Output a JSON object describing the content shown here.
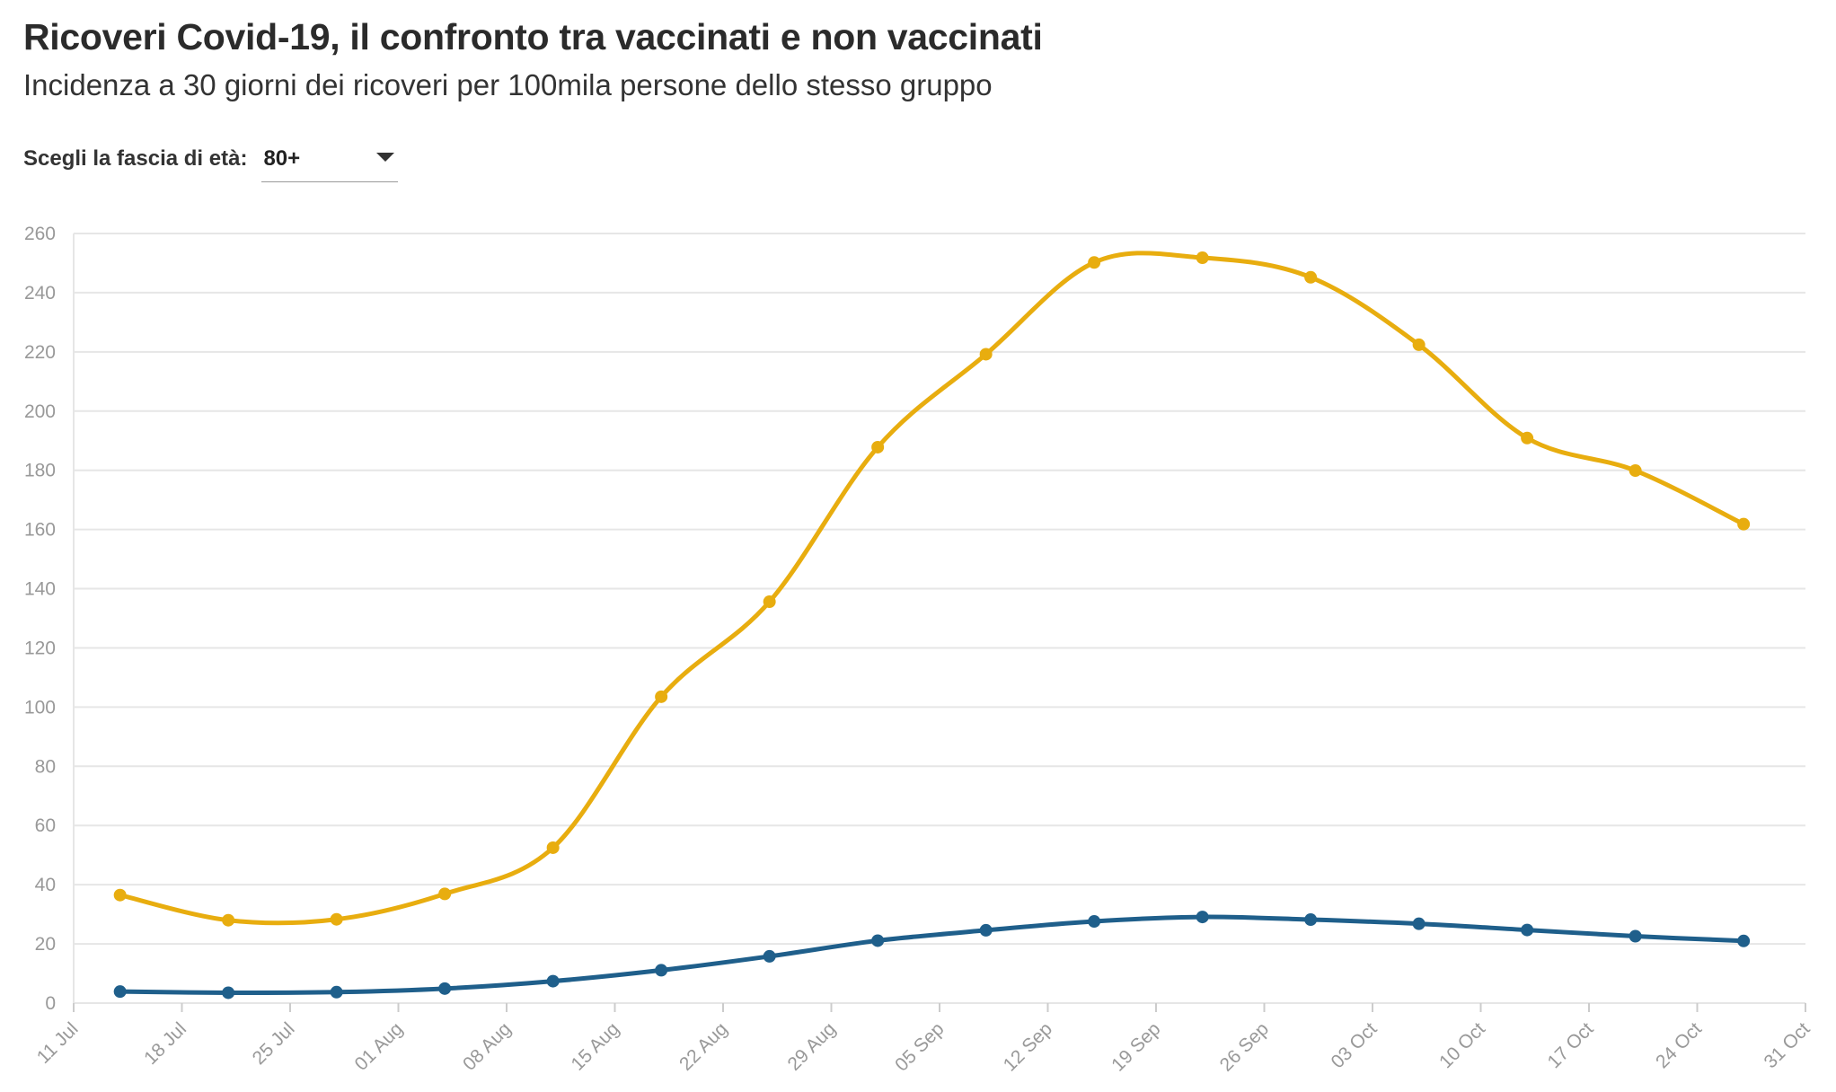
{
  "header": {
    "title": "Ricoveri Covid-19, il confronto tra vaccinati e non vaccinati",
    "subtitle": "Incidenza a 30 giorni dei ricoveri per 100mila persone dello stesso gruppo"
  },
  "control": {
    "label": "Scegli la fascia di età:",
    "selected": "80+",
    "icon": "chevron-down-icon"
  },
  "colors": {
    "non_vaccinati": "#e8ad0f",
    "vaccinati": "#1f5f8b",
    "grid": "#e6e6e6",
    "tick": "#999999"
  },
  "chart_data": {
    "type": "line",
    "title": "",
    "xlabel": "",
    "ylabel": "",
    "ylim": [
      0,
      260
    ],
    "yticks": [
      0,
      20,
      40,
      60,
      80,
      100,
      120,
      140,
      160,
      180,
      200,
      220,
      240,
      260
    ],
    "xlim": [
      "2021-07-11",
      "2021-10-31"
    ],
    "xticks": [
      "11 Jul",
      "18 Jul",
      "25 Jul",
      "01 Aug",
      "08 Aug",
      "15 Aug",
      "22 Aug",
      "29 Aug",
      "05 Sep",
      "12 Sep",
      "19 Sep",
      "26 Sep",
      "03 Oct",
      "10 Oct",
      "17 Oct",
      "24 Oct",
      "31 Oct"
    ],
    "xtick_dates": [
      "2021-07-11",
      "2021-07-18",
      "2021-07-25",
      "2021-08-01",
      "2021-08-08",
      "2021-08-15",
      "2021-08-22",
      "2021-08-29",
      "2021-09-05",
      "2021-09-12",
      "2021-09-19",
      "2021-09-26",
      "2021-10-03",
      "2021-10-10",
      "2021-10-17",
      "2021-10-24",
      "2021-10-31"
    ],
    "grid": true,
    "legend": "none",
    "x": [
      "2021-07-14",
      "2021-07-21",
      "2021-07-28",
      "2021-08-04",
      "2021-08-11",
      "2021-08-18",
      "2021-08-25",
      "2021-09-01",
      "2021-09-08",
      "2021-09-15",
      "2021-09-22",
      "2021-09-29",
      "2021-10-06",
      "2021-10-13",
      "2021-10-20",
      "2021-10-27"
    ],
    "series": [
      {
        "values": [
          36.5,
          28,
          28.3,
          36.9,
          52.5,
          103.5,
          135.6,
          187.8,
          219.2,
          250.2,
          251.8,
          245.2,
          222.4,
          190.9,
          179.9,
          161.8
        ]
      },
      {
        "values": [
          3.9,
          3.5,
          3.7,
          4.9,
          7.4,
          11.1,
          15.8,
          21.1,
          24.6,
          27.6,
          29.1,
          28.2,
          26.8,
          24.7,
          22.6,
          21.0
        ]
      }
    ]
  }
}
